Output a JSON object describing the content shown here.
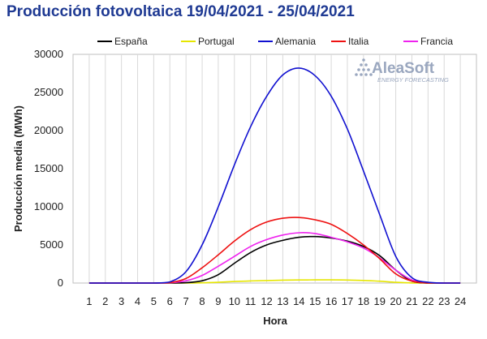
{
  "title": "Producción fotovoltaica 19/04/2021 - 25/04/2021",
  "colors": {
    "title": "#1f3a93"
  },
  "watermark": {
    "brand": "AleaSoft",
    "tagline": "ENERGY FORECASTING",
    "icon": "dotted-triangle-logo"
  },
  "chart_data": {
    "type": "line",
    "xlabel": "Hora",
    "ylabel": "Producción media (MWh)",
    "x": [
      1,
      2,
      3,
      4,
      5,
      6,
      7,
      8,
      9,
      10,
      11,
      12,
      13,
      14,
      15,
      16,
      17,
      18,
      19,
      20,
      21,
      22,
      23,
      24
    ],
    "ylim": [
      0,
      30000
    ],
    "yticks": [
      0,
      5000,
      10000,
      15000,
      20000,
      25000,
      30000
    ],
    "grid": "vertical",
    "legend": "top",
    "series": [
      {
        "name": "España",
        "color": "#000000",
        "values": [
          0,
          0,
          0,
          0,
          0,
          0,
          40,
          300,
          1100,
          2600,
          4000,
          5000,
          5600,
          6000,
          6100,
          5900,
          5500,
          4800,
          3600,
          1700,
          250,
          0,
          0,
          0
        ]
      },
      {
        "name": "Portugal",
        "color": "#e6e600",
        "values": [
          0,
          0,
          0,
          0,
          0,
          0,
          5,
          30,
          100,
          200,
          280,
          330,
          380,
          400,
          420,
          420,
          390,
          340,
          240,
          100,
          10,
          0,
          0,
          0
        ]
      },
      {
        "name": "Alemania",
        "color": "#1010d0",
        "values": [
          0,
          0,
          0,
          0,
          0,
          150,
          1500,
          5000,
          10000,
          15500,
          20500,
          24500,
          27300,
          28200,
          27200,
          24500,
          20200,
          14700,
          9000,
          3500,
          700,
          100,
          0,
          0
        ]
      },
      {
        "name": "Italia",
        "color": "#ee1111",
        "values": [
          0,
          0,
          0,
          0,
          0,
          50,
          600,
          2000,
          3700,
          5500,
          7000,
          8000,
          8500,
          8600,
          8300,
          7700,
          6500,
          5000,
          3200,
          1200,
          250,
          0,
          0,
          0
        ]
      },
      {
        "name": "Francia",
        "color": "#ee22ee",
        "values": [
          0,
          0,
          0,
          0,
          0,
          30,
          300,
          1000,
          2200,
          3500,
          4800,
          5700,
          6300,
          6600,
          6500,
          6000,
          5400,
          4600,
          3300,
          1700,
          400,
          50,
          0,
          0
        ]
      }
    ]
  }
}
